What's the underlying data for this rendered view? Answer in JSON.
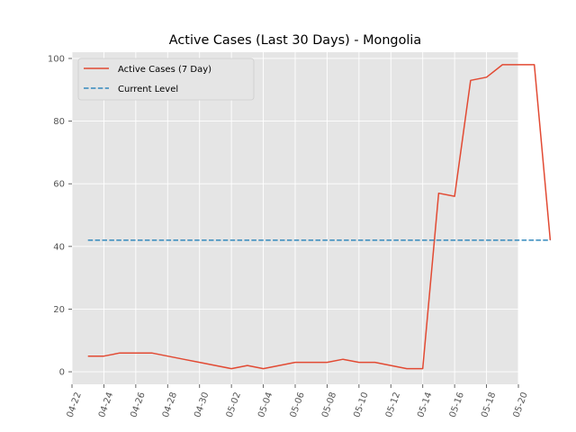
{
  "chart_data": {
    "type": "line",
    "title": "Active Cases (Last 30 Days) - Mongolia",
    "xlabel": "",
    "ylabel": "",
    "x_axis_type": "date",
    "xlim": [
      "2021-04-22",
      "2021-05-20"
    ],
    "ylim": [
      -4,
      102
    ],
    "x_ticks": [
      "04-22",
      "04-24",
      "04-26",
      "04-28",
      "04-30",
      "05-02",
      "05-04",
      "05-06",
      "05-08",
      "05-10",
      "05-12",
      "05-14",
      "05-16",
      "05-18",
      "05-20"
    ],
    "y_ticks": [
      0,
      20,
      40,
      60,
      80,
      100
    ],
    "grid": true,
    "legend_position": "top-left",
    "series": [
      {
        "name": "Active Cases (7 Day)",
        "color": "#E24A33",
        "style": "solid",
        "points": [
          [
            "2021-04-23",
            5
          ],
          [
            "2021-04-24",
            5
          ],
          [
            "2021-04-25",
            6
          ],
          [
            "2021-04-26",
            6
          ],
          [
            "2021-04-27",
            6
          ],
          [
            "2021-04-28",
            5
          ],
          [
            "2021-04-29",
            4
          ],
          [
            "2021-04-30",
            3
          ],
          [
            "2021-05-01",
            2
          ],
          [
            "2021-05-02",
            1
          ],
          [
            "2021-05-03",
            2
          ],
          [
            "2021-05-04",
            1
          ],
          [
            "2021-05-05",
            2
          ],
          [
            "2021-05-06",
            3
          ],
          [
            "2021-05-07",
            3
          ],
          [
            "2021-05-08",
            3
          ],
          [
            "2021-05-09",
            4
          ],
          [
            "2021-05-10",
            3
          ],
          [
            "2021-05-11",
            3
          ],
          [
            "2021-05-12",
            2
          ],
          [
            "2021-05-13",
            1
          ],
          [
            "2021-05-14",
            1
          ],
          [
            "2021-05-15",
            57
          ],
          [
            "2021-05-16",
            56
          ],
          [
            "2021-05-17",
            93
          ],
          [
            "2021-05-18",
            94
          ],
          [
            "2021-05-19",
            98
          ],
          [
            "2021-05-20",
            98
          ],
          [
            "2021-05-21",
            98
          ],
          [
            "2021-05-22",
            42
          ]
        ]
      },
      {
        "name": "Current Level",
        "color": "#348ABD",
        "style": "dashed",
        "points": [
          [
            "2021-04-23",
            42
          ],
          [
            "2021-05-22",
            42
          ]
        ]
      }
    ]
  }
}
